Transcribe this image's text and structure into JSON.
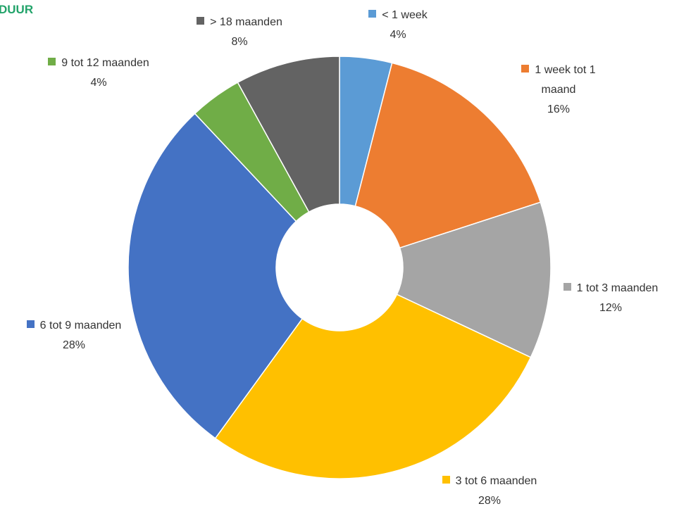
{
  "chart_data": {
    "type": "donut",
    "title": "DUUR",
    "categories": [
      "< 1 week",
      "1 week tot 1 maand",
      "1 tot 3 maanden",
      "3 tot 6 maanden",
      "6 tot 9 maanden",
      "9 tot 12 maanden",
      "> 18 maanden"
    ],
    "values": [
      4,
      16,
      12,
      28,
      28,
      4,
      8
    ],
    "value_labels": [
      "4%",
      "16%",
      "12%",
      "28%",
      "28%",
      "4%",
      "8%"
    ],
    "colors": [
      "#5b9bd5",
      "#ed7d31",
      "#a5a5a5",
      "#ffc000",
      "#4472c4",
      "#70ad47",
      "#636363"
    ]
  }
}
